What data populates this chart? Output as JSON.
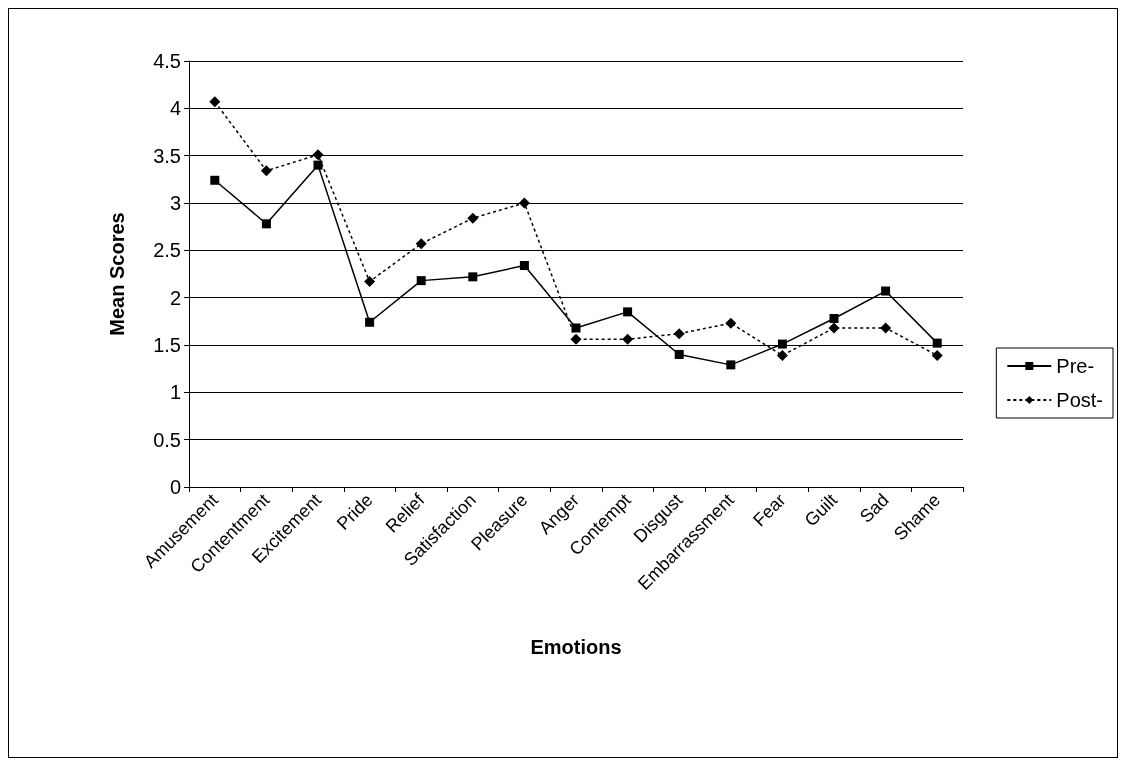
{
  "chart_data": {
    "type": "line",
    "xlabel": "Emotions",
    "ylabel": "Mean Scores",
    "categories": [
      "Amusement",
      "Contentment",
      "Excitement",
      "Pride",
      "Relief",
      "Satisfaction",
      "Pleasure",
      "Anger",
      "Contempt",
      "Disgust",
      "Embarrassment",
      "Fear",
      "Guilt",
      "Sad",
      "Shame"
    ],
    "series": [
      {
        "name": "Pre-",
        "color": "#000000",
        "marker": "square",
        "line_style": "solid",
        "values": [
          3.24,
          2.78,
          3.4,
          1.74,
          2.18,
          2.22,
          2.34,
          1.68,
          1.85,
          1.4,
          1.29,
          1.51,
          1.78,
          2.07,
          1.52
        ]
      },
      {
        "name": "Post-",
        "color": "#000000",
        "marker": "diamond",
        "line_style": "dotted",
        "values": [
          4.07,
          3.34,
          3.51,
          2.17,
          2.57,
          2.84,
          3.0,
          1.56,
          1.56,
          1.62,
          1.73,
          1.39,
          1.68,
          1.68,
          1.39
        ]
      }
    ],
    "ylim": [
      0,
      4.5
    ],
    "yticks": [
      0,
      0.5,
      1,
      1.5,
      2,
      2.5,
      3,
      3.5,
      4,
      4.5
    ],
    "grid": "y",
    "legend": "right"
  }
}
